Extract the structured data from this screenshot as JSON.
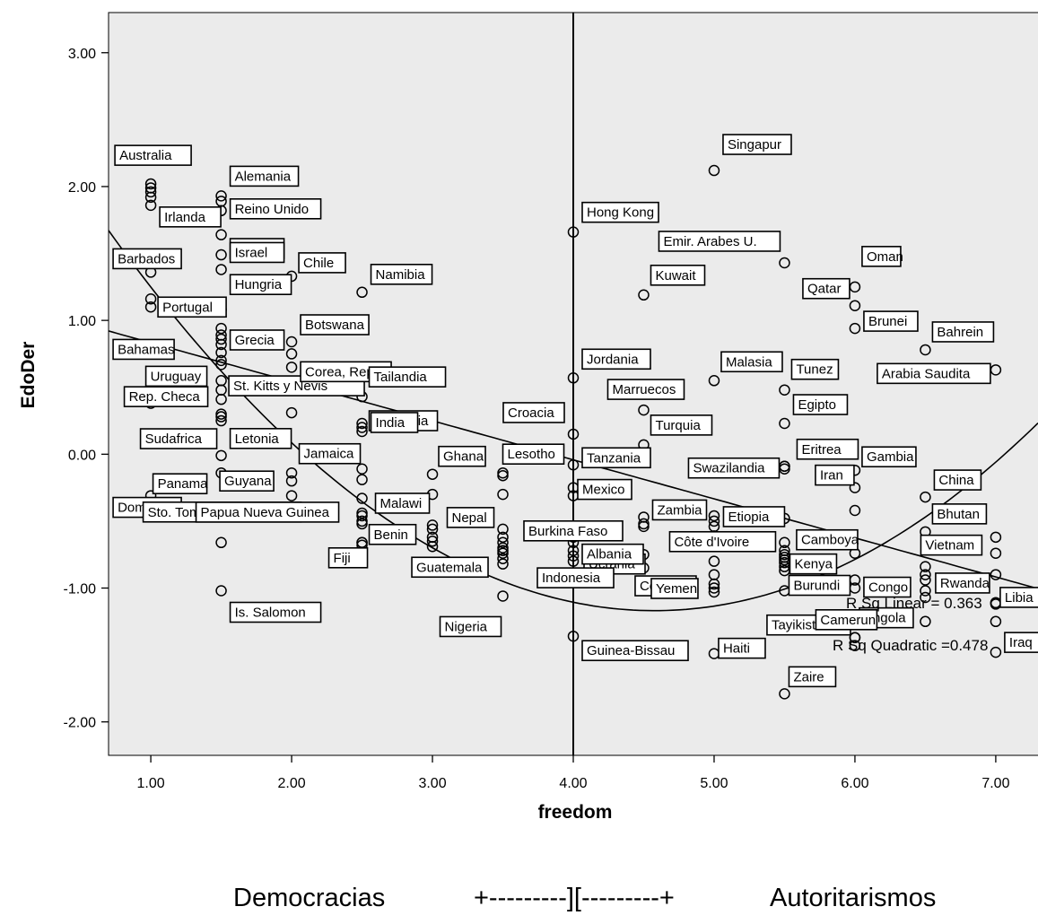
{
  "chart_data": {
    "type": "scatter",
    "xlabel": "freedom",
    "ylabel": "EdoDer",
    "xlim": [
      0.7,
      7.3
    ],
    "ylim": [
      -2.25,
      3.3
    ],
    "xticks": [
      "1.00",
      "2.00",
      "3.00",
      "4.00",
      "5.00",
      "6.00",
      "7.00"
    ],
    "yticks": [
      "-2.00",
      "-1.00",
      "0.00",
      "1.00",
      "2.00",
      "3.00"
    ],
    "grid": false,
    "background_color": "#ebebeb",
    "reference_line_x": 4.0,
    "labeled_points": [
      {
        "label": "Australia",
        "x": 1.0,
        "y": 2.22
      },
      {
        "label": "Irlanda",
        "x": 1.0,
        "y": 1.86
      },
      {
        "label": "Barbados",
        "x": 1.0,
        "y": 1.36
      },
      {
        "label": "Portugal",
        "x": 1.0,
        "y": 1.16
      },
      {
        "label": "Bahamas",
        "x": 1.0,
        "y": 0.75
      },
      {
        "label": "Uruguay",
        "x": 1.5,
        "y": 0.67
      },
      {
        "label": "Rep. Checa",
        "x": 1.5,
        "y": 0.41
      },
      {
        "label": "Sudafrica",
        "x": 1.5,
        "y": 0.25
      },
      {
        "label": "Panama",
        "x": 1.5,
        "y": -0.14
      },
      {
        "label": "Dominica",
        "x": 1.0,
        "y": -0.31
      },
      {
        "label": "Sto. Tome y Principe",
        "x": 1.5,
        "y": -0.66
      },
      {
        "label": "Alemania",
        "x": 1.5,
        "y": 1.93
      },
      {
        "label": "Reino Unido",
        "x": 1.5,
        "y": 1.82
      },
      {
        "label": "Espana",
        "x": 1.5,
        "y": 1.49
      },
      {
        "label": "Israel",
        "x": 1.5,
        "y": 1.38
      },
      {
        "label": "Hungria",
        "x": 1.5,
        "y": 1.08
      },
      {
        "label": "Grecia",
        "x": 1.5,
        "y": 0.82
      },
      {
        "label": "St. Kitts y Nevis",
        "x": 2.0,
        "y": 0.31
      },
      {
        "label": "Letonia",
        "x": 1.5,
        "y": -0.01
      },
      {
        "label": "Guyana",
        "x": 2.0,
        "y": -0.14
      },
      {
        "label": "Papua Nueva Guinea",
        "x": 2.5,
        "y": -0.5
      },
      {
        "label": "Is. Salomon",
        "x": 1.5,
        "y": -1.02
      },
      {
        "label": "Chile",
        "x": 2.0,
        "y": 1.33
      },
      {
        "label": "Botswana",
        "x": 2.0,
        "y": 0.84
      },
      {
        "label": "Corea, Rep.",
        "x": 2.0,
        "y": 0.65
      },
      {
        "label": "Namibia",
        "x": 2.5,
        "y": 1.21
      },
      {
        "label": "Tailandia",
        "x": 2.5,
        "y": 0.43
      },
      {
        "label": "Mongolia",
        "x": 2.5,
        "y": 0.23
      },
      {
        "label": "India",
        "x": 2.5,
        "y": 0.17
      },
      {
        "label": "Jamaica",
        "x": 2.5,
        "y": -0.11
      },
      {
        "label": "Malawi",
        "x": 2.5,
        "y": -0.44
      },
      {
        "label": "Benin",
        "x": 2.5,
        "y": -0.68
      },
      {
        "label": "Fiji",
        "x": 2.5,
        "y": -0.66
      },
      {
        "label": "Ghana",
        "x": 3.0,
        "y": -0.15
      },
      {
        "label": "Guatemala",
        "x": 3.0,
        "y": -0.69
      },
      {
        "label": "Nepal",
        "x": 3.5,
        "y": -0.56
      },
      {
        "label": "Nigeria",
        "x": 3.5,
        "y": -1.06
      },
      {
        "label": "Croacia",
        "x": 4.0,
        "y": 0.15
      },
      {
        "label": "Lesotho",
        "x": 3.5,
        "y": -0.16
      },
      {
        "label": "Mexico",
        "x": 4.0,
        "y": -0.31
      },
      {
        "label": "Ucrania",
        "x": 4.0,
        "y": -0.72
      },
      {
        "label": "Burkina Faso",
        "x": 4.0,
        "y": -0.66
      },
      {
        "label": "Albania",
        "x": 4.0,
        "y": -0.8
      },
      {
        "label": "Indonesia",
        "x": 4.0,
        "y": -0.89
      },
      {
        "label": "Guinea-Bissau",
        "x": 4.0,
        "y": -1.36
      },
      {
        "label": "Hong Kong",
        "x": 4.0,
        "y": 1.66
      },
      {
        "label": "Jordania",
        "x": 4.0,
        "y": 0.57
      },
      {
        "label": "Tanzania",
        "x": 4.0,
        "y": -0.08
      },
      {
        "label": "Marruecos",
        "x": 4.5,
        "y": 0.33
      },
      {
        "label": "Turquia",
        "x": 4.5,
        "y": 0.07
      },
      {
        "label": "Zambia",
        "x": 4.5,
        "y": -0.47
      },
      {
        "label": "Comoras",
        "x": 5.0,
        "y": -0.97
      },
      {
        "label": "Kuwait",
        "x": 4.5,
        "y": 1.19
      },
      {
        "label": "Singapur",
        "x": 5.0,
        "y": 2.12
      },
      {
        "label": "Emir. Arabes U.",
        "x": 5.5,
        "y": 1.43
      },
      {
        "label": "Malasia",
        "x": 5.0,
        "y": 0.55
      },
      {
        "label": "Swazilandia",
        "x": 5.5,
        "y": -0.11
      },
      {
        "label": "Etiopia",
        "x": 5.5,
        "y": -0.48
      },
      {
        "label": "Côte d'Ivoire",
        "x": 5.5,
        "y": -0.66
      },
      {
        "label": "Yemen",
        "x": 5.0,
        "y": -1.03
      },
      {
        "label": "Haiti",
        "x": 5.0,
        "y": -1.49
      },
      {
        "label": "Tunez",
        "x": 5.5,
        "y": 0.48
      },
      {
        "label": "Egipto",
        "x": 5.5,
        "y": 0.23
      },
      {
        "label": "Eritrea",
        "x": 5.5,
        "y": -0.09
      },
      {
        "label": "Kenya",
        "x": 5.5,
        "y": -0.84
      },
      {
        "label": "Burundi",
        "x": 5.5,
        "y": -1.02
      },
      {
        "label": "Tayikistan",
        "x": 6.0,
        "y": -1.37
      },
      {
        "label": "Zaire",
        "x": 5.5,
        "y": -1.79
      },
      {
        "label": "Qatar",
        "x": 6.0,
        "y": 1.11
      },
      {
        "label": "Oman",
        "x": 6.0,
        "y": 1.25
      },
      {
        "label": "Brunei",
        "x": 6.0,
        "y": 0.94
      },
      {
        "label": "Iran",
        "x": 6.0,
        "y": -0.25
      },
      {
        "label": "Camboya",
        "x": 6.0,
        "y": -0.74
      },
      {
        "label": "Gambia",
        "x": 6.0,
        "y": -0.12
      },
      {
        "label": "Congo",
        "x": 6.0,
        "y": -1.0
      },
      {
        "label": "Angola",
        "x": 6.0,
        "y": -1.43
      },
      {
        "label": "Bahrein",
        "x": 6.5,
        "y": 0.78
      },
      {
        "label": "Arabia Saudita",
        "x": 7.0,
        "y": 0.63
      },
      {
        "label": "China",
        "x": 6.5,
        "y": -0.32
      },
      {
        "label": "Bhutan",
        "x": 6.5,
        "y": -0.58
      },
      {
        "label": "Vietnam",
        "x": 6.5,
        "y": -0.84
      },
      {
        "label": "Rwanda",
        "x": 7.0,
        "y": -1.11
      },
      {
        "label": "Camerun",
        "x": 6.5,
        "y": -1.25
      },
      {
        "label": "Libia",
        "x": 7.0,
        "y": -1.11
      },
      {
        "label": "Iraq",
        "x": 7.0,
        "y": -1.48
      }
    ],
    "other_points": [
      {
        "x": 1.0,
        "y": 2.02
      },
      {
        "x": 1.0,
        "y": 1.99
      },
      {
        "x": 1.0,
        "y": 1.96
      },
      {
        "x": 1.0,
        "y": 1.92
      },
      {
        "x": 1.0,
        "y": 1.1
      },
      {
        "x": 1.0,
        "y": 0.38
      },
      {
        "x": 1.5,
        "y": 1.89
      },
      {
        "x": 1.5,
        "y": 1.64
      },
      {
        "x": 1.5,
        "y": 0.94
      },
      {
        "x": 1.5,
        "y": 0.89
      },
      {
        "x": 1.5,
        "y": 0.86
      },
      {
        "x": 1.5,
        "y": 0.76
      },
      {
        "x": 1.5,
        "y": 0.7
      },
      {
        "x": 1.5,
        "y": 0.55
      },
      {
        "x": 1.5,
        "y": 0.48
      },
      {
        "x": 1.5,
        "y": 0.3
      },
      {
        "x": 1.5,
        "y": 0.28
      },
      {
        "x": 2.0,
        "y": 0.75
      },
      {
        "x": 2.0,
        "y": -0.2
      },
      {
        "x": 2.0,
        "y": -0.31
      },
      {
        "x": 2.5,
        "y": 0.2
      },
      {
        "x": 2.5,
        "y": -0.19
      },
      {
        "x": 2.5,
        "y": -0.33
      },
      {
        "x": 2.5,
        "y": -0.46
      },
      {
        "x": 2.5,
        "y": -0.52
      },
      {
        "x": 2.5,
        "y": -0.66
      },
      {
        "x": 3.0,
        "y": -0.3
      },
      {
        "x": 3.0,
        "y": -0.53
      },
      {
        "x": 3.0,
        "y": -0.56
      },
      {
        "x": 3.0,
        "y": -0.62
      },
      {
        "x": 3.0,
        "y": -0.65
      },
      {
        "x": 3.5,
        "y": -0.14
      },
      {
        "x": 3.5,
        "y": -0.3
      },
      {
        "x": 3.5,
        "y": -0.62
      },
      {
        "x": 3.5,
        "y": -0.66
      },
      {
        "x": 3.5,
        "y": -0.7
      },
      {
        "x": 3.5,
        "y": -0.72
      },
      {
        "x": 3.5,
        "y": -0.74
      },
      {
        "x": 3.5,
        "y": -0.78
      },
      {
        "x": 3.5,
        "y": -0.82
      },
      {
        "x": 4.0,
        "y": -0.25
      },
      {
        "x": 4.0,
        "y": -0.62
      },
      {
        "x": 4.0,
        "y": -0.76
      },
      {
        "x": 4.5,
        "y": -0.52
      },
      {
        "x": 4.5,
        "y": -0.54
      },
      {
        "x": 4.5,
        "y": -0.75
      },
      {
        "x": 4.5,
        "y": -0.85
      },
      {
        "x": 5.0,
        "y": -0.46
      },
      {
        "x": 5.0,
        "y": -0.5
      },
      {
        "x": 5.0,
        "y": -0.54
      },
      {
        "x": 5.0,
        "y": -0.61
      },
      {
        "x": 5.0,
        "y": -0.8
      },
      {
        "x": 5.0,
        "y": -0.9
      },
      {
        "x": 5.0,
        "y": -1.0
      },
      {
        "x": 5.5,
        "y": -0.09
      },
      {
        "x": 5.5,
        "y": -0.72
      },
      {
        "x": 5.5,
        "y": -0.75
      },
      {
        "x": 5.5,
        "y": -0.77
      },
      {
        "x": 5.5,
        "y": -0.79
      },
      {
        "x": 5.5,
        "y": -0.81
      },
      {
        "x": 5.5,
        "y": -0.87
      },
      {
        "x": 6.0,
        "y": -0.42
      },
      {
        "x": 6.0,
        "y": -0.94
      },
      {
        "x": 6.0,
        "y": -1.25
      },
      {
        "x": 6.0,
        "y": -1.37
      },
      {
        "x": 6.5,
        "y": -0.9
      },
      {
        "x": 6.5,
        "y": -0.94
      },
      {
        "x": 6.5,
        "y": -1.02
      },
      {
        "x": 6.5,
        "y": -1.07
      },
      {
        "x": 7.0,
        "y": -0.62
      },
      {
        "x": 7.0,
        "y": -0.74
      },
      {
        "x": 7.0,
        "y": -0.9
      },
      {
        "x": 7.0,
        "y": -1.25
      },
      {
        "x": 7.0,
        "y": -1.12
      }
    ],
    "fits": {
      "linear": {
        "intercept": 1.125,
        "slope": -0.2917,
        "r_squared_text": "R Sq Linear = 0.363"
      },
      "quadratic": {
        "a": 2.79,
        "b": -1.73,
        "c": 0.189,
        "r_squared_text": "R Sq Quadratic =0.478"
      }
    }
  },
  "footer": {
    "left": "Democracias",
    "middle": "+---------][---------+",
    "right": "Autoritarismos"
  }
}
